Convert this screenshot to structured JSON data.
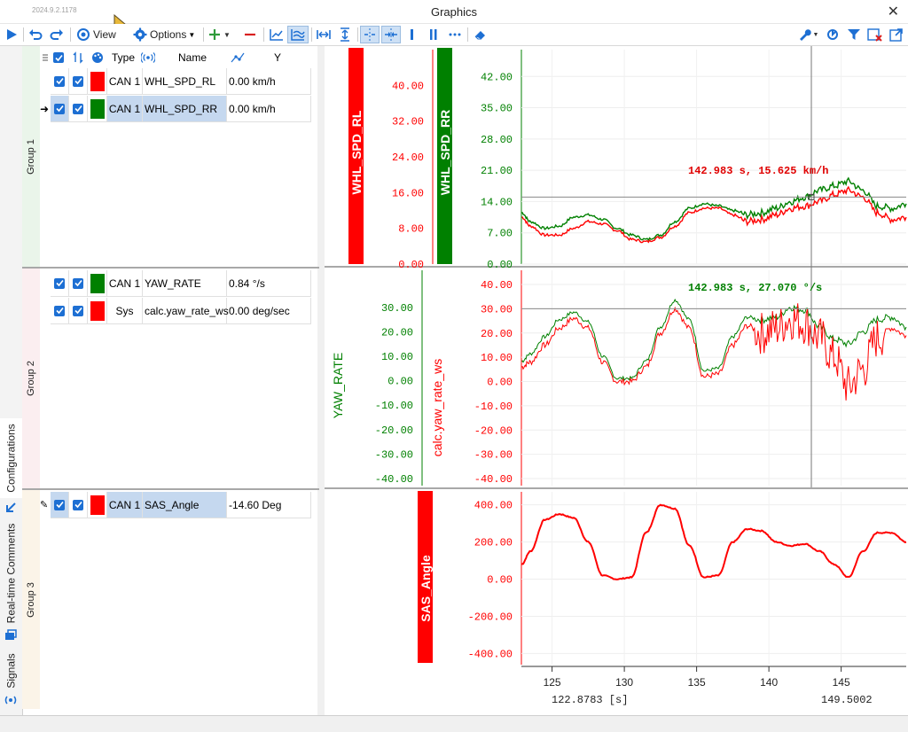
{
  "window": {
    "version": "2024.9.2.1178",
    "title": "Graphics"
  },
  "toolbar": {
    "view_label": "View",
    "options_label": "Options"
  },
  "left_tabs": {
    "configurations": "Configurations",
    "comments": "Real-time Comments",
    "signals": "Signals"
  },
  "table_header": {
    "type": "Type",
    "name": "Name",
    "y": "Y"
  },
  "groups": [
    {
      "label": "Group 1",
      "rows": [
        {
          "type": "CAN 1",
          "name": "WHL_SPD_RL",
          "value": "0.00 km/h",
          "color": "#ff0000"
        },
        {
          "type": "CAN 1",
          "name": "WHL_SPD_RR",
          "value": "0.00 km/h",
          "color": "#008000"
        }
      ]
    },
    {
      "label": "Group 2",
      "rows": [
        {
          "type": "CAN 1",
          "name": "YAW_RATE",
          "value": "0.84 °/s",
          "color": "#008000"
        },
        {
          "type": "Sys",
          "name": "calc.yaw_rate_ws",
          "value": "0.00 deg/sec",
          "color": "#ff0000"
        }
      ]
    },
    {
      "label": "Group 3",
      "rows": [
        {
          "type": "CAN 1",
          "name": "SAS_Angle",
          "value": "-14.60 Deg",
          "color": "#ff0000"
        }
      ]
    }
  ],
  "colors": {
    "red": "#ff0000",
    "green": "#008000",
    "accent": "#1d6fd3",
    "selection": "#c5d8ef"
  },
  "icons": [
    "play-icon",
    "undo-icon",
    "redo-icon",
    "view-icon",
    "gear-icon",
    "plus-icon",
    "minus-icon",
    "line-chart-icon",
    "multi-line-icon",
    "fit-width-icon",
    "fit-height-icon",
    "cursor-icon",
    "wrench-icon",
    "link-icon",
    "filter-icon",
    "delete-icon",
    "export-icon",
    "eraser-icon"
  ],
  "chart_data": [
    {
      "type": "line",
      "y_axes": [
        {
          "label": "WHL_SPD_RL",
          "color": "#ff0000",
          "ticks": [
            "40.00",
            "32.00",
            "24.00",
            "16.00",
            "8.00",
            "0.00"
          ],
          "ylim": [
            0,
            48
          ]
        },
        {
          "label": "WHL_SPD_RR",
          "color": "#008000",
          "ticks": [
            "42.00",
            "35.00",
            "28.00",
            "21.00",
            "14.00",
            "7.00",
            "0.00"
          ],
          "ylim": [
            0,
            48
          ]
        }
      ],
      "cursor_readout": "142.983 s, 15.625 km/h",
      "cursor_y": 15.0,
      "series": [
        {
          "name": "WHL_SPD_RL",
          "color": "#ff0000",
          "x": [
            122.9,
            123.5,
            124.5,
            125.5,
            126.5,
            127.5,
            128.5,
            129.5,
            130.5,
            131.5,
            132.5,
            133.5,
            134.5,
            135.5,
            136.5,
            137.5,
            138.5,
            139.5,
            140.5,
            141.5,
            142.5,
            143.5,
            144.5,
            145.5,
            146.5,
            147.5,
            148.5,
            149.5
          ],
          "y": [
            10.5,
            8.5,
            6.5,
            6.5,
            8.0,
            9.5,
            9.0,
            7.5,
            5.5,
            5.0,
            6.0,
            8.5,
            11.5,
            12.5,
            12.5,
            11.0,
            9.5,
            10.0,
            11.0,
            12.5,
            13.0,
            14.0,
            15.5,
            16.5,
            15.0,
            11.5,
            10.0,
            10.5
          ]
        },
        {
          "name": "WHL_SPD_RR",
          "color": "#008000",
          "x": [
            122.9,
            123.5,
            124.5,
            125.5,
            126.5,
            127.5,
            128.5,
            129.5,
            130.5,
            131.5,
            132.5,
            133.5,
            134.5,
            135.5,
            136.5,
            137.5,
            138.5,
            139.5,
            140.5,
            141.5,
            142.5,
            143.5,
            144.5,
            145.5,
            146.5,
            147.5,
            148.5,
            149.5
          ],
          "y": [
            11.5,
            9.5,
            8.0,
            8.5,
            10.5,
            11.0,
            10.0,
            8.0,
            6.5,
            5.5,
            6.5,
            9.5,
            12.5,
            13.5,
            13.0,
            12.0,
            11.0,
            11.5,
            12.5,
            14.0,
            15.0,
            16.5,
            17.5,
            18.5,
            16.5,
            13.0,
            12.5,
            13.5
          ]
        }
      ]
    },
    {
      "type": "line",
      "y_axes": [
        {
          "label": "YAW_RATE",
          "color": "#008000",
          "ticks": [
            "30.00",
            "20.00",
            "10.00",
            "0.00",
            "-10.00",
            "-20.00",
            "-30.00",
            "-40.00"
          ],
          "ylim": [
            -40,
            35
          ]
        },
        {
          "label": "calc.yaw_rate_ws",
          "color": "#ff0000",
          "ticks": [
            "40.00",
            "30.00",
            "20.00",
            "10.00",
            "0.00",
            "-10.00",
            "-20.00",
            "-30.00",
            "-40.00"
          ],
          "ylim": [
            -40,
            40
          ]
        }
      ],
      "cursor_readout": "142.983 s, 27.070 °/s",
      "cursor_y": 30.0,
      "series": [
        {
          "name": "YAW_RATE",
          "color": "#008000",
          "x": [
            122.9,
            123.5,
            124.5,
            125.5,
            126.5,
            127.5,
            128.5,
            129.5,
            130.5,
            131.5,
            132.5,
            133.5,
            134.5,
            135.5,
            136.5,
            137.5,
            138.5,
            139.5,
            140.5,
            141.5,
            142.5,
            143.5,
            144.5,
            145.5,
            146.5,
            147.5,
            148.5,
            149.5
          ],
          "y": [
            8,
            11,
            18,
            25,
            28,
            24,
            10,
            1,
            1,
            8,
            22,
            33,
            25,
            4,
            5,
            18,
            26,
            25,
            26,
            30,
            29,
            22,
            17,
            15,
            20,
            25,
            26,
            22
          ]
        },
        {
          "name": "calc.yaw_rate_ws",
          "color": "#ff0000",
          "x": [
            122.9,
            123.5,
            124.5,
            125.5,
            126.5,
            127.5,
            128.5,
            129.5,
            130.5,
            131.5,
            132.5,
            133.5,
            134.5,
            135.5,
            136.5,
            137.5,
            138.5,
            139.5,
            140.5,
            141.5,
            142.5,
            143.5,
            144.5,
            145.5,
            146.5,
            147.5,
            148.5,
            149.5
          ],
          "y": [
            6,
            8,
            15,
            22,
            26,
            22,
            8,
            0,
            0,
            6,
            20,
            30,
            22,
            2,
            3,
            15,
            23,
            20,
            22,
            26,
            24,
            18,
            10,
            -2,
            5,
            18,
            22,
            19
          ]
        }
      ]
    },
    {
      "type": "line",
      "y_axes": [
        {
          "label": "SAS_Angle",
          "color": "#ff0000",
          "ticks": [
            "400.00",
            "200.00",
            "0.00",
            "-200.00",
            "-400.00"
          ],
          "ylim": [
            -460,
            470
          ]
        }
      ],
      "x_ticks": [
        "125",
        "130",
        "135",
        "140",
        "145"
      ],
      "xlim": [
        122.8783,
        149.5002
      ],
      "x_start_label": "122.8783 [s]",
      "x_end_label": "149.5002",
      "series": [
        {
          "name": "SAS_Angle",
          "color": "#ff0000",
          "x": [
            122.9,
            123.5,
            124.5,
            125.5,
            126.5,
            127.5,
            128.5,
            129.5,
            130.5,
            131.5,
            132.5,
            133.5,
            134.5,
            135.5,
            136.5,
            137.5,
            138.5,
            139.5,
            140.5,
            141.5,
            142.5,
            143.5,
            144.5,
            145.5,
            146.5,
            147.5,
            148.5,
            149.5
          ],
          "y": [
            80,
            150,
            320,
            350,
            330,
            200,
            20,
            0,
            10,
            250,
            400,
            380,
            180,
            10,
            20,
            200,
            270,
            260,
            200,
            180,
            190,
            150,
            80,
            10,
            150,
            250,
            250,
            200
          ]
        }
      ]
    }
  ]
}
